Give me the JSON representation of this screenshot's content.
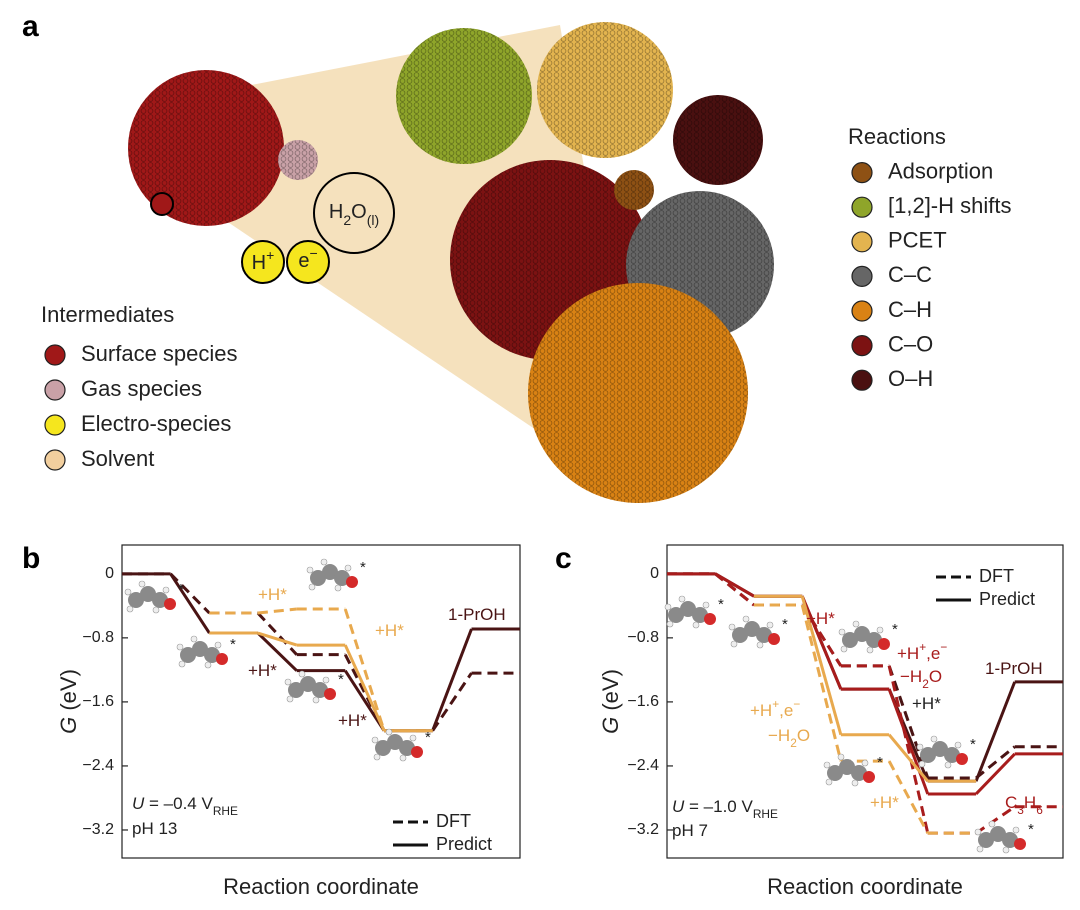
{
  "panel_a": {
    "label": "a",
    "intermediates": {
      "title": "Intermediates",
      "items": [
        {
          "name": "Surface species",
          "color": "#a01818"
        },
        {
          "name": "Gas species",
          "color": "#c9a1a7"
        },
        {
          "name": "Electro-species",
          "color": "#f5e61e"
        },
        {
          "name": "Solvent",
          "color": "#f2cf9e"
        }
      ]
    },
    "reactions": {
      "title": "Reactions",
      "items": [
        {
          "name": "Adsorption",
          "color": "#8e5114"
        },
        {
          "name": "[1,2]-H shifts",
          "color": "#8fa52a"
        },
        {
          "name": "PCET",
          "color": "#e3b44f"
        },
        {
          "name": "C–C",
          "color": "#666666"
        },
        {
          "name": "C–H",
          "color": "#d98214"
        },
        {
          "name": "C–O",
          "color": "#7c1212"
        },
        {
          "name": "O–H",
          "color": "#4a1010"
        }
      ]
    },
    "nodes": [
      {
        "parts": [
          {
            "t": "H"
          },
          {
            "t": "2",
            "s": "sub"
          },
          {
            "t": "O"
          },
          {
            "t": "(l)",
            "s": "sub"
          }
        ]
      },
      {
        "parts": [
          {
            "t": "H"
          },
          {
            "t": "+",
            "s": "sup"
          }
        ]
      },
      {
        "parts": [
          {
            "t": "e"
          },
          {
            "t": "−",
            "s": "sup"
          }
        ]
      }
    ]
  },
  "chart_data": [
    {
      "type": "step",
      "panel_label": "b",
      "ylabel": [
        {
          "t": "G",
          "s": "i"
        },
        {
          "t": " (eV)"
        }
      ],
      "xlabel": "Reaction coordinate",
      "xlim": [
        0,
        4
      ],
      "x": [
        0,
        1,
        2,
        3,
        4
      ],
      "ylim": [
        -3.55,
        0.36
      ],
      "yticks": [
        0,
        {
          "value": -0.8,
          "label": "−0.8"
        },
        {
          "value": -1.6,
          "label": "−1.6"
        },
        {
          "value": -2.4,
          "label": "−2.4"
        },
        {
          "value": -3.2,
          "label": "−3.2"
        }
      ],
      "legend_corner": "lower right",
      "legend": [
        {
          "label": "DFT",
          "dashed": true
        },
        {
          "label": "Predict",
          "dashed": false
        }
      ],
      "series": [
        {
          "color": "#4a1414",
          "dashed": true,
          "values": [
            0,
            -0.49,
            -1.01,
            -1.96,
            -1.24
          ]
        },
        {
          "color": "#4a1414",
          "dashed": false,
          "values": [
            0,
            -0.74,
            -1.21,
            -1.96,
            -0.69
          ]
        },
        {
          "color": "#e8a94e",
          "dashed": true,
          "values": [
            null,
            -0.49,
            -0.44,
            -1.96,
            null
          ]
        },
        {
          "color": "#e8a94e",
          "dashed": false,
          "values": [
            null,
            -0.74,
            -0.89,
            -1.96,
            null
          ]
        }
      ],
      "annotations": [
        {
          "color": "#e8a94e",
          "parts": [
            {
              "t": "+H*"
            }
          ]
        },
        {
          "color": "#e8a94e",
          "parts": [
            {
              "t": "+H*"
            }
          ]
        },
        {
          "color": "#4a1414",
          "parts": [
            {
              "t": "+H*"
            }
          ]
        },
        {
          "color": "#4a1414",
          "parts": [
            {
              "t": "+H*"
            }
          ]
        },
        {
          "color": "#4a1414",
          "parts": [
            {
              "t": "1-PrOH"
            }
          ]
        },
        {
          "color": "#222222",
          "parts": [
            {
              "t": "U",
              "s": "i"
            },
            {
              "t": " = –0.4 V"
            },
            {
              "t": "RHE",
              "s": "sub"
            }
          ]
        },
        {
          "color": "#222222",
          "parts": [
            {
              "t": "pH 13"
            }
          ]
        }
      ]
    },
    {
      "type": "step",
      "panel_label": "c",
      "ylabel": [
        {
          "t": "G",
          "s": "i"
        },
        {
          "t": " (eV)"
        }
      ],
      "xlabel": "Reaction coordinate",
      "xlim": [
        0,
        4
      ],
      "x": [
        0,
        1,
        2,
        3,
        4
      ],
      "ylim": [
        -3.55,
        0.36
      ],
      "yticks": [
        0,
        {
          "value": -0.8,
          "label": "−0.8"
        },
        {
          "value": -1.6,
          "label": "−1.6"
        },
        {
          "value": -2.4,
          "label": "−2.4"
        },
        {
          "value": -3.2,
          "label": "−3.2"
        }
      ],
      "legend_corner": "upper right",
      "legend": [
        {
          "label": "DFT",
          "dashed": true
        },
        {
          "label": "Predict",
          "dashed": false
        }
      ],
      "series": [
        {
          "color": "#4a1414",
          "dashed": true,
          "values": [
            0,
            -0.39,
            -1.15,
            -2.55,
            -2.16
          ]
        },
        {
          "color": "#4a1414",
          "dashed": false,
          "values": [
            0,
            -0.28,
            -1.44,
            -2.59,
            -1.35
          ]
        },
        {
          "color": "#a81c1c",
          "dashed": true,
          "values": [
            0,
            -0.39,
            -1.15,
            -3.24,
            -2.91
          ]
        },
        {
          "color": "#a81c1c",
          "dashed": false,
          "values": [
            0,
            -0.28,
            -1.44,
            -2.75,
            -2.25
          ]
        },
        {
          "color": "#e8a94e",
          "dashed": true,
          "values": [
            null,
            -0.39,
            -2.34,
            -3.24,
            null
          ]
        },
        {
          "color": "#e8a94e",
          "dashed": false,
          "values": [
            null,
            -0.28,
            -2.01,
            -2.59,
            null
          ]
        }
      ],
      "annotations": [
        {
          "color": "#a81c1c",
          "parts": [
            {
              "t": "+H*"
            }
          ]
        },
        {
          "color": "#a81c1c",
          "parts": [
            {
              "t": "+H"
            },
            {
              "t": "+",
              "s": "sup"
            },
            {
              "t": ",e"
            },
            {
              "t": "−",
              "s": "sup"
            }
          ]
        },
        {
          "color": "#a81c1c",
          "parts": [
            {
              "t": "−H"
            },
            {
              "t": "2",
              "s": "sub"
            },
            {
              "t": "O"
            }
          ]
        },
        {
          "color": "#222222",
          "parts": [
            {
              "t": "+H*"
            }
          ]
        },
        {
          "color": "#e8a94e",
          "parts": [
            {
              "t": "+H"
            },
            {
              "t": "+",
              "s": "sup"
            },
            {
              "t": ",e"
            },
            {
              "t": "−",
              "s": "sup"
            }
          ]
        },
        {
          "color": "#e8a94e",
          "parts": [
            {
              "t": "−H"
            },
            {
              "t": "2",
              "s": "sub"
            },
            {
              "t": "O"
            }
          ]
        },
        {
          "color": "#e8a94e",
          "parts": [
            {
              "t": "+H*"
            }
          ]
        },
        {
          "color": "#4a1414",
          "parts": [
            {
              "t": "1-PrOH"
            }
          ]
        },
        {
          "color": "#a81c1c",
          "parts": [
            {
              "t": "C"
            },
            {
              "t": "3",
              "s": "sub"
            },
            {
              "t": "H"
            },
            {
              "t": "6",
              "s": "sub"
            }
          ]
        },
        {
          "color": "#222222",
          "parts": [
            {
              "t": "U",
              "s": "i"
            },
            {
              "t": " = –1.0 V"
            },
            {
              "t": "RHE",
              "s": "sub"
            }
          ]
        },
        {
          "color": "#222222",
          "parts": [
            {
              "t": "pH 7"
            }
          ]
        }
      ]
    }
  ]
}
